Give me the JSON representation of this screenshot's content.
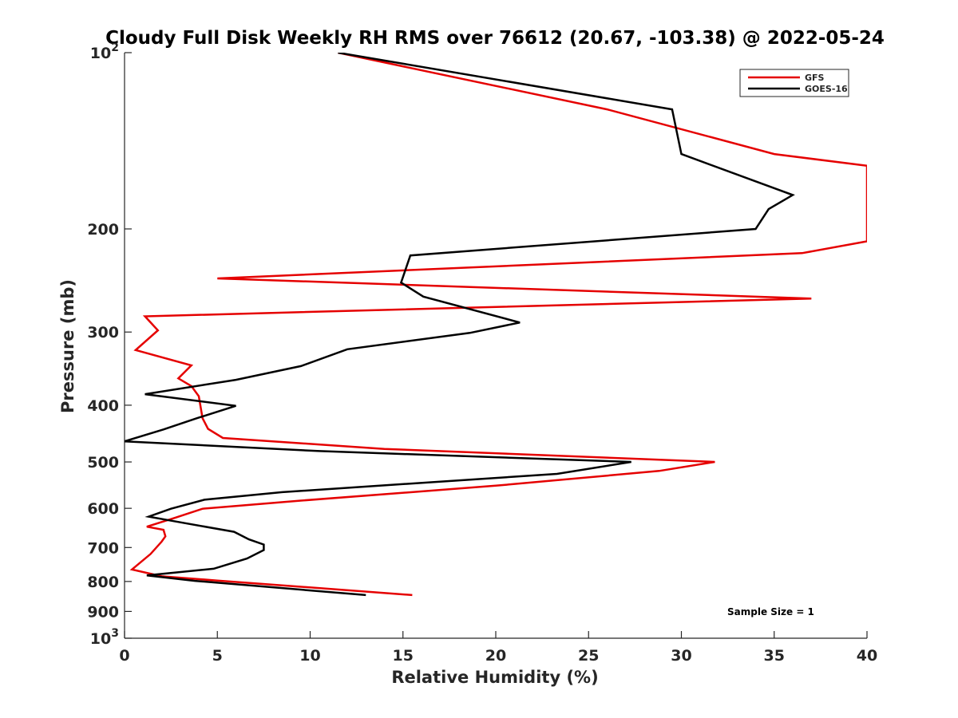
{
  "chart_data": {
    "type": "line",
    "title": "Cloudy Full Disk Weekly RH RMS over 76612 (20.67, -103.38) @ 2022-05-24",
    "xlabel": "Relative Humidity (%)",
    "ylabel": "Pressure (mb)",
    "xlim": [
      0,
      40
    ],
    "ylim": [
      100,
      1000
    ],
    "yscale": "log",
    "yreversed": true,
    "x_ticks": [
      0,
      5,
      10,
      15,
      20,
      25,
      30,
      35,
      40
    ],
    "x_tick_labels": [
      "0",
      "5",
      "10",
      "15",
      "20",
      "25",
      "30",
      "35",
      "40"
    ],
    "y_ticks": [
      100,
      200,
      300,
      400,
      500,
      600,
      700,
      800,
      900,
      1000
    ],
    "y_tick_labels": [
      {
        "base": "10",
        "exp": "2"
      },
      {
        "base": "200"
      },
      {
        "base": "300"
      },
      {
        "base": "400"
      },
      {
        "base": "500"
      },
      {
        "base": "600"
      },
      {
        "base": "700"
      },
      {
        "base": "800"
      },
      {
        "base": "900"
      },
      {
        "base": "10",
        "exp": "3"
      }
    ],
    "legend_position": "top-right",
    "annotation": "Sample Size = 1",
    "series": [
      {
        "name": "GFS",
        "color": "#e50000",
        "points": [
          [
            11.5,
            100
          ],
          [
            26,
            125
          ],
          [
            35,
            149
          ],
          [
            40,
            156
          ],
          [
            40,
            210
          ],
          [
            36.5,
            220
          ],
          [
            5,
            243
          ],
          [
            37,
            263
          ],
          [
            1.1,
            282
          ],
          [
            1.8,
            298
          ],
          [
            0.6,
            322
          ],
          [
            3.6,
            342
          ],
          [
            2.9,
            360
          ],
          [
            3.6,
            371
          ],
          [
            4.0,
            386
          ],
          [
            4.2,
            421
          ],
          [
            4.5,
            439
          ],
          [
            5.3,
            455
          ],
          [
            14,
            475
          ],
          [
            31.8,
            500
          ],
          [
            28.8,
            518
          ],
          [
            20,
            549
          ],
          [
            9.5,
            582
          ],
          [
            4.2,
            601
          ],
          [
            2.7,
            623
          ],
          [
            1.2,
            645
          ],
          [
            2.1,
            653
          ],
          [
            2.2,
            670
          ],
          [
            2.0,
            684
          ],
          [
            1.4,
            718
          ],
          [
            0.4,
            763
          ],
          [
            2,
            784
          ],
          [
            5,
            797
          ],
          [
            15.5,
            844
          ]
        ]
      },
      {
        "name": "GOES-16",
        "color": "#000000",
        "points": [
          [
            11.5,
            100
          ],
          [
            29.5,
            125
          ],
          [
            30,
            149
          ],
          [
            36,
            175
          ],
          [
            34.7,
            185
          ],
          [
            34,
            200
          ],
          [
            15.4,
            222
          ],
          [
            14.9,
            247
          ],
          [
            16.1,
            261
          ],
          [
            21.3,
            289
          ],
          [
            18.6,
            301
          ],
          [
            12,
            321
          ],
          [
            9.5,
            343
          ],
          [
            6,
            362
          ],
          [
            1.1,
            383
          ],
          [
            6,
            401
          ],
          [
            3.9,
            421
          ],
          [
            2.1,
            440
          ],
          [
            0,
            461
          ],
          [
            10.5,
            479
          ],
          [
            27.3,
            500
          ],
          [
            23.3,
            524
          ],
          [
            8.5,
            563
          ],
          [
            4.3,
            580
          ],
          [
            2.5,
            601
          ],
          [
            1.3,
            620
          ],
          [
            3,
            634
          ],
          [
            5.9,
            658
          ],
          [
            6.7,
            678
          ],
          [
            7.5,
            692
          ],
          [
            7.5,
            707
          ],
          [
            6.6,
            731
          ],
          [
            4.8,
            761
          ],
          [
            1.2,
            781
          ],
          [
            3.8,
            798
          ],
          [
            13,
            844
          ]
        ]
      }
    ]
  }
}
